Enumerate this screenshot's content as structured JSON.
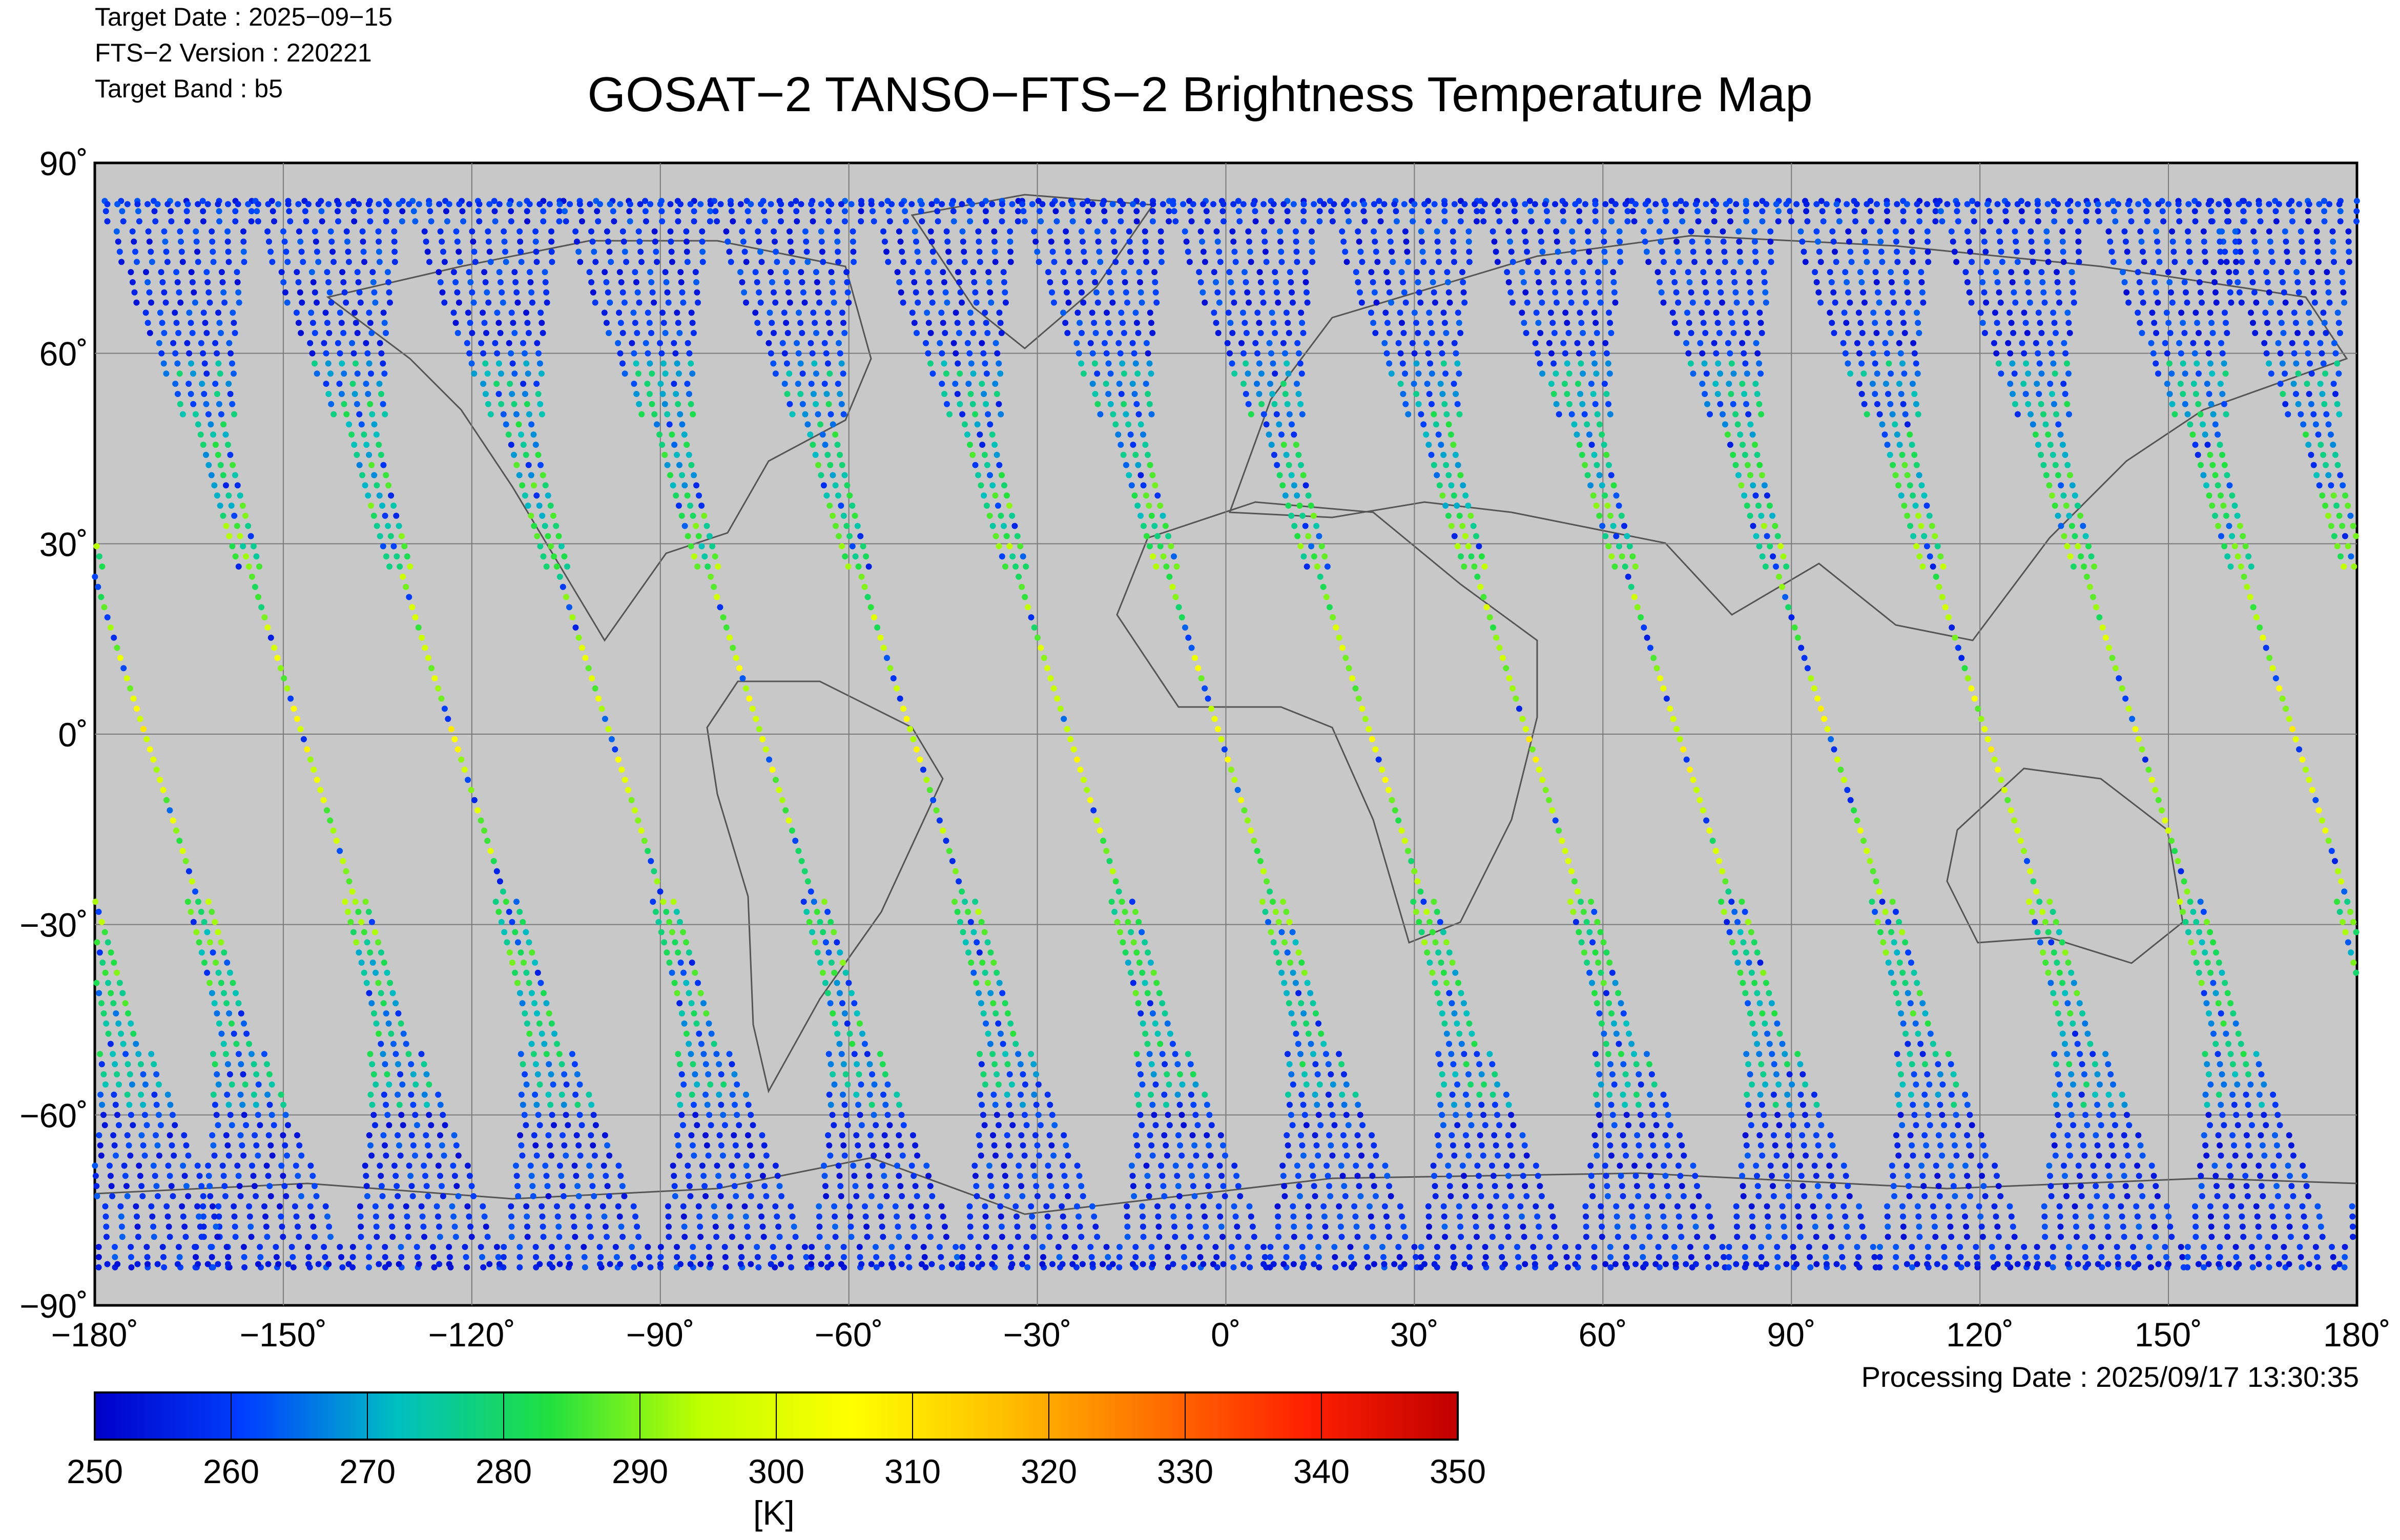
{
  "header": {
    "target_date": "Target Date   : 2025−09−15",
    "fts_version": "FTS−2 Version : 220221",
    "target_band": "Target Band   : b5",
    "title": "GOSAT−2 TANSO−FTS−2 Brightness Temperature Map"
  },
  "processing_date": "Processing Date : 2025/09/17 13:30:35",
  "map": {
    "projection": "equirectangular",
    "background_color": "#c8c8c8",
    "grid": true,
    "lon_ticks": [
      "−180˚",
      "−150˚",
      "−120˚",
      "−90˚",
      "−60˚",
      "−30˚",
      "0˚",
      "30˚",
      "60˚",
      "90˚",
      "120˚",
      "150˚",
      "180˚"
    ],
    "lat_ticks": [
      "90˚",
      "60˚",
      "30˚",
      "0˚",
      "−30˚",
      "−60˚",
      "−90˚"
    ],
    "lon_range": [
      -180,
      180
    ],
    "lat_range": [
      -90,
      90
    ],
    "orbit_tracks_equator_lon": [
      -172,
      -147,
      -123,
      -98,
      -74,
      -50,
      -25,
      -1,
      23,
      48,
      72,
      96,
      121,
      145,
      170
    ]
  },
  "colorbar": {
    "ticks": [
      "250",
      "260",
      "270",
      "280",
      "290",
      "300",
      "310",
      "320",
      "330",
      "340",
      "350"
    ],
    "range": [
      250,
      350
    ],
    "unit": "[K]",
    "stops": [
      "#0000c8",
      "#0040ff",
      "#00c0c0",
      "#20e040",
      "#c0ff00",
      "#ffff00",
      "#ffc000",
      "#ff7000",
      "#ff2000",
      "#c00000"
    ]
  }
}
